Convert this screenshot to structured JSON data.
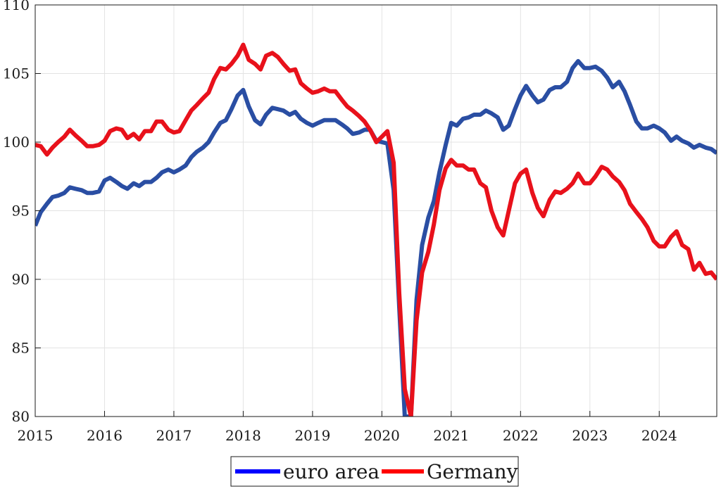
{
  "chart_data": {
    "type": "line",
    "title": "",
    "xlabel": "",
    "ylabel": "",
    "xlim": [
      2015.0,
      2024.83
    ],
    "ylim": [
      80,
      110
    ],
    "grid": true,
    "legend_position": "bottom-center",
    "x_ticks": [
      2015,
      2016,
      2017,
      2018,
      2019,
      2020,
      2021,
      2022,
      2023,
      2024
    ],
    "y_ticks": [
      80,
      85,
      90,
      95,
      100,
      105,
      110
    ],
    "series": [
      {
        "name": "euro area",
        "color": "#2a4ea3",
        "legend_color": "#0000ff",
        "points": [
          [
            2015.0,
            93.9
          ],
          [
            2015.08,
            94.9
          ],
          [
            2015.17,
            95.5
          ],
          [
            2015.25,
            96.0
          ],
          [
            2015.33,
            96.1
          ],
          [
            2015.42,
            96.3
          ],
          [
            2015.5,
            96.7
          ],
          [
            2015.58,
            96.6
          ],
          [
            2015.67,
            96.5
          ],
          [
            2015.75,
            96.3
          ],
          [
            2015.83,
            96.3
          ],
          [
            2015.92,
            96.4
          ],
          [
            2016.0,
            97.2
          ],
          [
            2016.08,
            97.4
          ],
          [
            2016.17,
            97.1
          ],
          [
            2016.25,
            96.8
          ],
          [
            2016.33,
            96.6
          ],
          [
            2016.42,
            97.0
          ],
          [
            2016.5,
            96.8
          ],
          [
            2016.58,
            97.1
          ],
          [
            2016.67,
            97.1
          ],
          [
            2016.75,
            97.4
          ],
          [
            2016.83,
            97.8
          ],
          [
            2016.92,
            98.0
          ],
          [
            2017.0,
            97.8
          ],
          [
            2017.08,
            98.0
          ],
          [
            2017.17,
            98.3
          ],
          [
            2017.25,
            98.9
          ],
          [
            2017.33,
            99.3
          ],
          [
            2017.42,
            99.6
          ],
          [
            2017.5,
            100.0
          ],
          [
            2017.58,
            100.7
          ],
          [
            2017.67,
            101.4
          ],
          [
            2017.75,
            101.6
          ],
          [
            2017.83,
            102.4
          ],
          [
            2017.92,
            103.4
          ],
          [
            2018.0,
            103.8
          ],
          [
            2018.08,
            102.6
          ],
          [
            2018.17,
            101.6
          ],
          [
            2018.25,
            101.3
          ],
          [
            2018.33,
            102.0
          ],
          [
            2018.42,
            102.5
          ],
          [
            2018.5,
            102.4
          ],
          [
            2018.58,
            102.3
          ],
          [
            2018.67,
            102.0
          ],
          [
            2018.75,
            102.2
          ],
          [
            2018.83,
            101.7
          ],
          [
            2018.92,
            101.4
          ],
          [
            2019.0,
            101.2
          ],
          [
            2019.08,
            101.4
          ],
          [
            2019.17,
            101.6
          ],
          [
            2019.25,
            101.6
          ],
          [
            2019.33,
            101.6
          ],
          [
            2019.42,
            101.3
          ],
          [
            2019.5,
            101.0
          ],
          [
            2019.58,
            100.6
          ],
          [
            2019.67,
            100.7
          ],
          [
            2019.75,
            100.9
          ],
          [
            2019.83,
            100.9
          ],
          [
            2019.92,
            100.1
          ],
          [
            2020.0,
            100.0
          ],
          [
            2020.08,
            99.9
          ],
          [
            2020.17,
            96.5
          ],
          [
            2020.25,
            88.0
          ],
          [
            2020.33,
            80.0
          ],
          [
            2020.42,
            80.0
          ],
          [
            2020.5,
            88.5
          ],
          [
            2020.58,
            92.5
          ],
          [
            2020.67,
            94.5
          ],
          [
            2020.75,
            95.7
          ],
          [
            2020.83,
            97.8
          ],
          [
            2020.92,
            99.8
          ],
          [
            2021.0,
            101.4
          ],
          [
            2021.08,
            101.2
          ],
          [
            2021.17,
            101.7
          ],
          [
            2021.25,
            101.8
          ],
          [
            2021.33,
            102.0
          ],
          [
            2021.42,
            102.0
          ],
          [
            2021.5,
            102.3
          ],
          [
            2021.58,
            102.1
          ],
          [
            2021.67,
            101.8
          ],
          [
            2021.75,
            100.9
          ],
          [
            2021.83,
            101.2
          ],
          [
            2021.92,
            102.4
          ],
          [
            2022.0,
            103.4
          ],
          [
            2022.08,
            104.1
          ],
          [
            2022.17,
            103.4
          ],
          [
            2022.25,
            102.9
          ],
          [
            2022.33,
            103.1
          ],
          [
            2022.42,
            103.8
          ],
          [
            2022.5,
            104.0
          ],
          [
            2022.58,
            104.0
          ],
          [
            2022.67,
            104.4
          ],
          [
            2022.75,
            105.4
          ],
          [
            2022.83,
            105.9
          ],
          [
            2022.92,
            105.4
          ],
          [
            2023.0,
            105.4
          ],
          [
            2023.08,
            105.5
          ],
          [
            2023.17,
            105.2
          ],
          [
            2023.25,
            104.7
          ],
          [
            2023.33,
            104.0
          ],
          [
            2023.42,
            104.4
          ],
          [
            2023.5,
            103.7
          ],
          [
            2023.58,
            102.7
          ],
          [
            2023.67,
            101.5
          ],
          [
            2023.75,
            101.0
          ],
          [
            2023.83,
            101.0
          ],
          [
            2023.92,
            101.2
          ],
          [
            2024.0,
            101.0
          ],
          [
            2024.08,
            100.7
          ],
          [
            2024.17,
            100.1
          ],
          [
            2024.25,
            100.4
          ],
          [
            2024.33,
            100.1
          ],
          [
            2024.42,
            99.9
          ],
          [
            2024.5,
            99.6
          ],
          [
            2024.58,
            99.8
          ],
          [
            2024.67,
            99.6
          ],
          [
            2024.75,
            99.5
          ],
          [
            2024.83,
            99.2
          ]
        ]
      },
      {
        "name": "Germany",
        "color": "#e8111b",
        "legend_color": "#ff0000",
        "points": [
          [
            2015.0,
            99.8
          ],
          [
            2015.08,
            99.7
          ],
          [
            2015.17,
            99.1
          ],
          [
            2015.25,
            99.6
          ],
          [
            2015.33,
            100.0
          ],
          [
            2015.42,
            100.4
          ],
          [
            2015.5,
            100.9
          ],
          [
            2015.58,
            100.5
          ],
          [
            2015.67,
            100.1
          ],
          [
            2015.75,
            99.7
          ],
          [
            2015.83,
            99.7
          ],
          [
            2015.92,
            99.8
          ],
          [
            2016.0,
            100.1
          ],
          [
            2016.08,
            100.8
          ],
          [
            2016.17,
            101.0
          ],
          [
            2016.25,
            100.9
          ],
          [
            2016.33,
            100.3
          ],
          [
            2016.42,
            100.6
          ],
          [
            2016.5,
            100.2
          ],
          [
            2016.58,
            100.8
          ],
          [
            2016.67,
            100.8
          ],
          [
            2016.75,
            101.5
          ],
          [
            2016.83,
            101.5
          ],
          [
            2016.92,
            100.9
          ],
          [
            2017.0,
            100.7
          ],
          [
            2017.08,
            100.8
          ],
          [
            2017.17,
            101.6
          ],
          [
            2017.25,
            102.3
          ],
          [
            2017.33,
            102.7
          ],
          [
            2017.42,
            103.2
          ],
          [
            2017.5,
            103.6
          ],
          [
            2017.58,
            104.6
          ],
          [
            2017.67,
            105.4
          ],
          [
            2017.75,
            105.3
          ],
          [
            2017.83,
            105.7
          ],
          [
            2017.92,
            106.3
          ],
          [
            2018.0,
            107.1
          ],
          [
            2018.08,
            106.0
          ],
          [
            2018.17,
            105.7
          ],
          [
            2018.25,
            105.3
          ],
          [
            2018.33,
            106.3
          ],
          [
            2018.42,
            106.5
          ],
          [
            2018.5,
            106.2
          ],
          [
            2018.58,
            105.7
          ],
          [
            2018.67,
            105.2
          ],
          [
            2018.75,
            105.3
          ],
          [
            2018.83,
            104.3
          ],
          [
            2018.92,
            103.9
          ],
          [
            2019.0,
            103.6
          ],
          [
            2019.08,
            103.7
          ],
          [
            2019.17,
            103.9
          ],
          [
            2019.25,
            103.7
          ],
          [
            2019.33,
            103.7
          ],
          [
            2019.42,
            103.1
          ],
          [
            2019.5,
            102.6
          ],
          [
            2019.58,
            102.3
          ],
          [
            2019.67,
            101.9
          ],
          [
            2019.75,
            101.5
          ],
          [
            2019.83,
            100.9
          ],
          [
            2019.92,
            100.0
          ],
          [
            2020.0,
            100.4
          ],
          [
            2020.08,
            100.8
          ],
          [
            2020.17,
            98.5
          ],
          [
            2020.25,
            89.0
          ],
          [
            2020.33,
            82.0
          ],
          [
            2020.42,
            80.0
          ],
          [
            2020.5,
            87.0
          ],
          [
            2020.58,
            90.5
          ],
          [
            2020.67,
            92.0
          ],
          [
            2020.75,
            94.0
          ],
          [
            2020.83,
            96.5
          ],
          [
            2020.92,
            98.1
          ],
          [
            2021.0,
            98.7
          ],
          [
            2021.08,
            98.3
          ],
          [
            2021.17,
            98.3
          ],
          [
            2021.25,
            98.0
          ],
          [
            2021.33,
            98.0
          ],
          [
            2021.42,
            97.0
          ],
          [
            2021.5,
            96.7
          ],
          [
            2021.58,
            95.0
          ],
          [
            2021.67,
            93.8
          ],
          [
            2021.75,
            93.2
          ],
          [
            2021.83,
            95.0
          ],
          [
            2021.92,
            97.0
          ],
          [
            2022.0,
            97.7
          ],
          [
            2022.08,
            98.0
          ],
          [
            2022.17,
            96.3
          ],
          [
            2022.25,
            95.2
          ],
          [
            2022.33,
            94.6
          ],
          [
            2022.42,
            95.8
          ],
          [
            2022.5,
            96.4
          ],
          [
            2022.58,
            96.3
          ],
          [
            2022.67,
            96.6
          ],
          [
            2022.75,
            97.0
          ],
          [
            2022.83,
            97.7
          ],
          [
            2022.92,
            97.0
          ],
          [
            2023.0,
            97.0
          ],
          [
            2023.08,
            97.5
          ],
          [
            2023.17,
            98.2
          ],
          [
            2023.25,
            98.0
          ],
          [
            2023.33,
            97.5
          ],
          [
            2023.42,
            97.1
          ],
          [
            2023.5,
            96.5
          ],
          [
            2023.58,
            95.5
          ],
          [
            2023.67,
            94.9
          ],
          [
            2023.75,
            94.4
          ],
          [
            2023.83,
            93.8
          ],
          [
            2023.92,
            92.8
          ],
          [
            2024.0,
            92.4
          ],
          [
            2024.08,
            92.4
          ],
          [
            2024.17,
            93.1
          ],
          [
            2024.25,
            93.5
          ],
          [
            2024.33,
            92.5
          ],
          [
            2024.42,
            92.2
          ],
          [
            2024.5,
            90.7
          ],
          [
            2024.58,
            91.2
          ],
          [
            2024.67,
            90.4
          ],
          [
            2024.75,
            90.5
          ],
          [
            2024.83,
            90.0
          ]
        ]
      }
    ]
  }
}
